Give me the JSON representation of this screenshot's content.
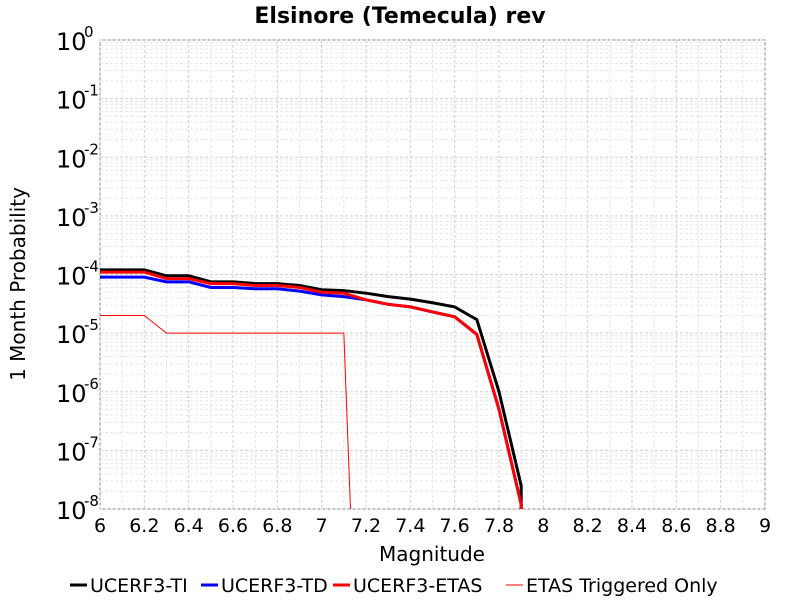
{
  "chart_data": {
    "type": "line",
    "title": "Elsinore (Temecula) rev",
    "xlabel": "Magnitude",
    "ylabel": "1 Month Probability",
    "xlim": [
      6,
      9
    ],
    "ylim": [
      1e-08,
      1
    ],
    "yscale": "log",
    "grid": true,
    "legend_position": "bottom",
    "x_ticks": [
      "6",
      "6.2",
      "6.4",
      "6.6",
      "6.8",
      "7",
      "7.2",
      "7.4",
      "7.6",
      "7.8",
      "8",
      "8.2",
      "8.4",
      "8.6",
      "8.8",
      "9"
    ],
    "y_ticks": [
      {
        "base": "10",
        "exp": "0"
      },
      {
        "base": "10",
        "exp": "-1"
      },
      {
        "base": "10",
        "exp": "-2"
      },
      {
        "base": "10",
        "exp": "-3"
      },
      {
        "base": "10",
        "exp": "-4"
      },
      {
        "base": "10",
        "exp": "-5"
      },
      {
        "base": "10",
        "exp": "-6"
      },
      {
        "base": "10",
        "exp": "-7"
      },
      {
        "base": "10",
        "exp": "-8"
      }
    ],
    "series": [
      {
        "name": "UCERF3-TI",
        "color": "#000000",
        "style": "thick",
        "points": [
          [
            6.0,
            0.00012
          ],
          [
            6.2,
            0.00012
          ],
          [
            6.3,
            9.5e-05
          ],
          [
            6.4,
            9.5e-05
          ],
          [
            6.5,
            7.5e-05
          ],
          [
            6.6,
            7.5e-05
          ],
          [
            6.7,
            7e-05
          ],
          [
            6.8,
            7e-05
          ],
          [
            6.9,
            6.5e-05
          ],
          [
            7.0,
            5.5e-05
          ],
          [
            7.1,
            5.3e-05
          ],
          [
            7.2,
            4.8e-05
          ],
          [
            7.3,
            4.2e-05
          ],
          [
            7.4,
            3.8e-05
          ],
          [
            7.5,
            3.3e-05
          ],
          [
            7.6,
            2.8e-05
          ],
          [
            7.7,
            1.7e-05
          ],
          [
            7.8,
            1e-06
          ],
          [
            7.9,
            2.5e-08
          ],
          [
            7.9,
            1e-08
          ]
        ]
      },
      {
        "name": "UCERF3-TD",
        "color": "#0000ff",
        "style": "thick",
        "points": [
          [
            6.0,
            9e-05
          ],
          [
            6.2,
            9e-05
          ],
          [
            6.3,
            7.5e-05
          ],
          [
            6.4,
            7.5e-05
          ],
          [
            6.5,
            6e-05
          ],
          [
            6.6,
            6e-05
          ],
          [
            6.7,
            5.7e-05
          ],
          [
            6.8,
            5.7e-05
          ],
          [
            6.9,
            5.2e-05
          ],
          [
            7.0,
            4.5e-05
          ],
          [
            7.1,
            4.2e-05
          ],
          [
            7.2,
            3.7e-05
          ],
          [
            7.3,
            3.1e-05
          ],
          [
            7.4,
            2.8e-05
          ],
          [
            7.5,
            2.3e-05
          ],
          [
            7.6,
            1.9e-05
          ],
          [
            7.7,
            9.5e-06
          ],
          [
            7.8,
            5e-07
          ],
          [
            7.9,
            1.2e-08
          ],
          [
            7.9,
            1e-08
          ]
        ]
      },
      {
        "name": "UCERF3-ETAS",
        "color": "#ff0000",
        "style": "thick",
        "points": [
          [
            6.0,
            0.00011
          ],
          [
            6.2,
            0.00011
          ],
          [
            6.3,
            8.5e-05
          ],
          [
            6.4,
            8.5e-05
          ],
          [
            6.5,
            7e-05
          ],
          [
            6.6,
            7e-05
          ],
          [
            6.7,
            6.5e-05
          ],
          [
            6.8,
            6.5e-05
          ],
          [
            6.9,
            6e-05
          ],
          [
            7.0,
            5e-05
          ],
          [
            7.1,
            4.8e-05
          ],
          [
            7.2,
            3.7e-05
          ],
          [
            7.3,
            3.1e-05
          ],
          [
            7.4,
            2.8e-05
          ],
          [
            7.5,
            2.3e-05
          ],
          [
            7.6,
            1.9e-05
          ],
          [
            7.7,
            9.5e-06
          ],
          [
            7.8,
            5e-07
          ],
          [
            7.9,
            1.2e-08
          ],
          [
            7.9,
            1e-08
          ]
        ]
      },
      {
        "name": "ETAS Triggered Only",
        "color": "#ff0000",
        "style": "thin",
        "points": [
          [
            6.0,
            2e-05
          ],
          [
            6.2,
            2e-05
          ],
          [
            6.3,
            1e-05
          ],
          [
            7.1,
            1e-05
          ],
          [
            7.13,
            1e-08
          ]
        ]
      }
    ]
  }
}
